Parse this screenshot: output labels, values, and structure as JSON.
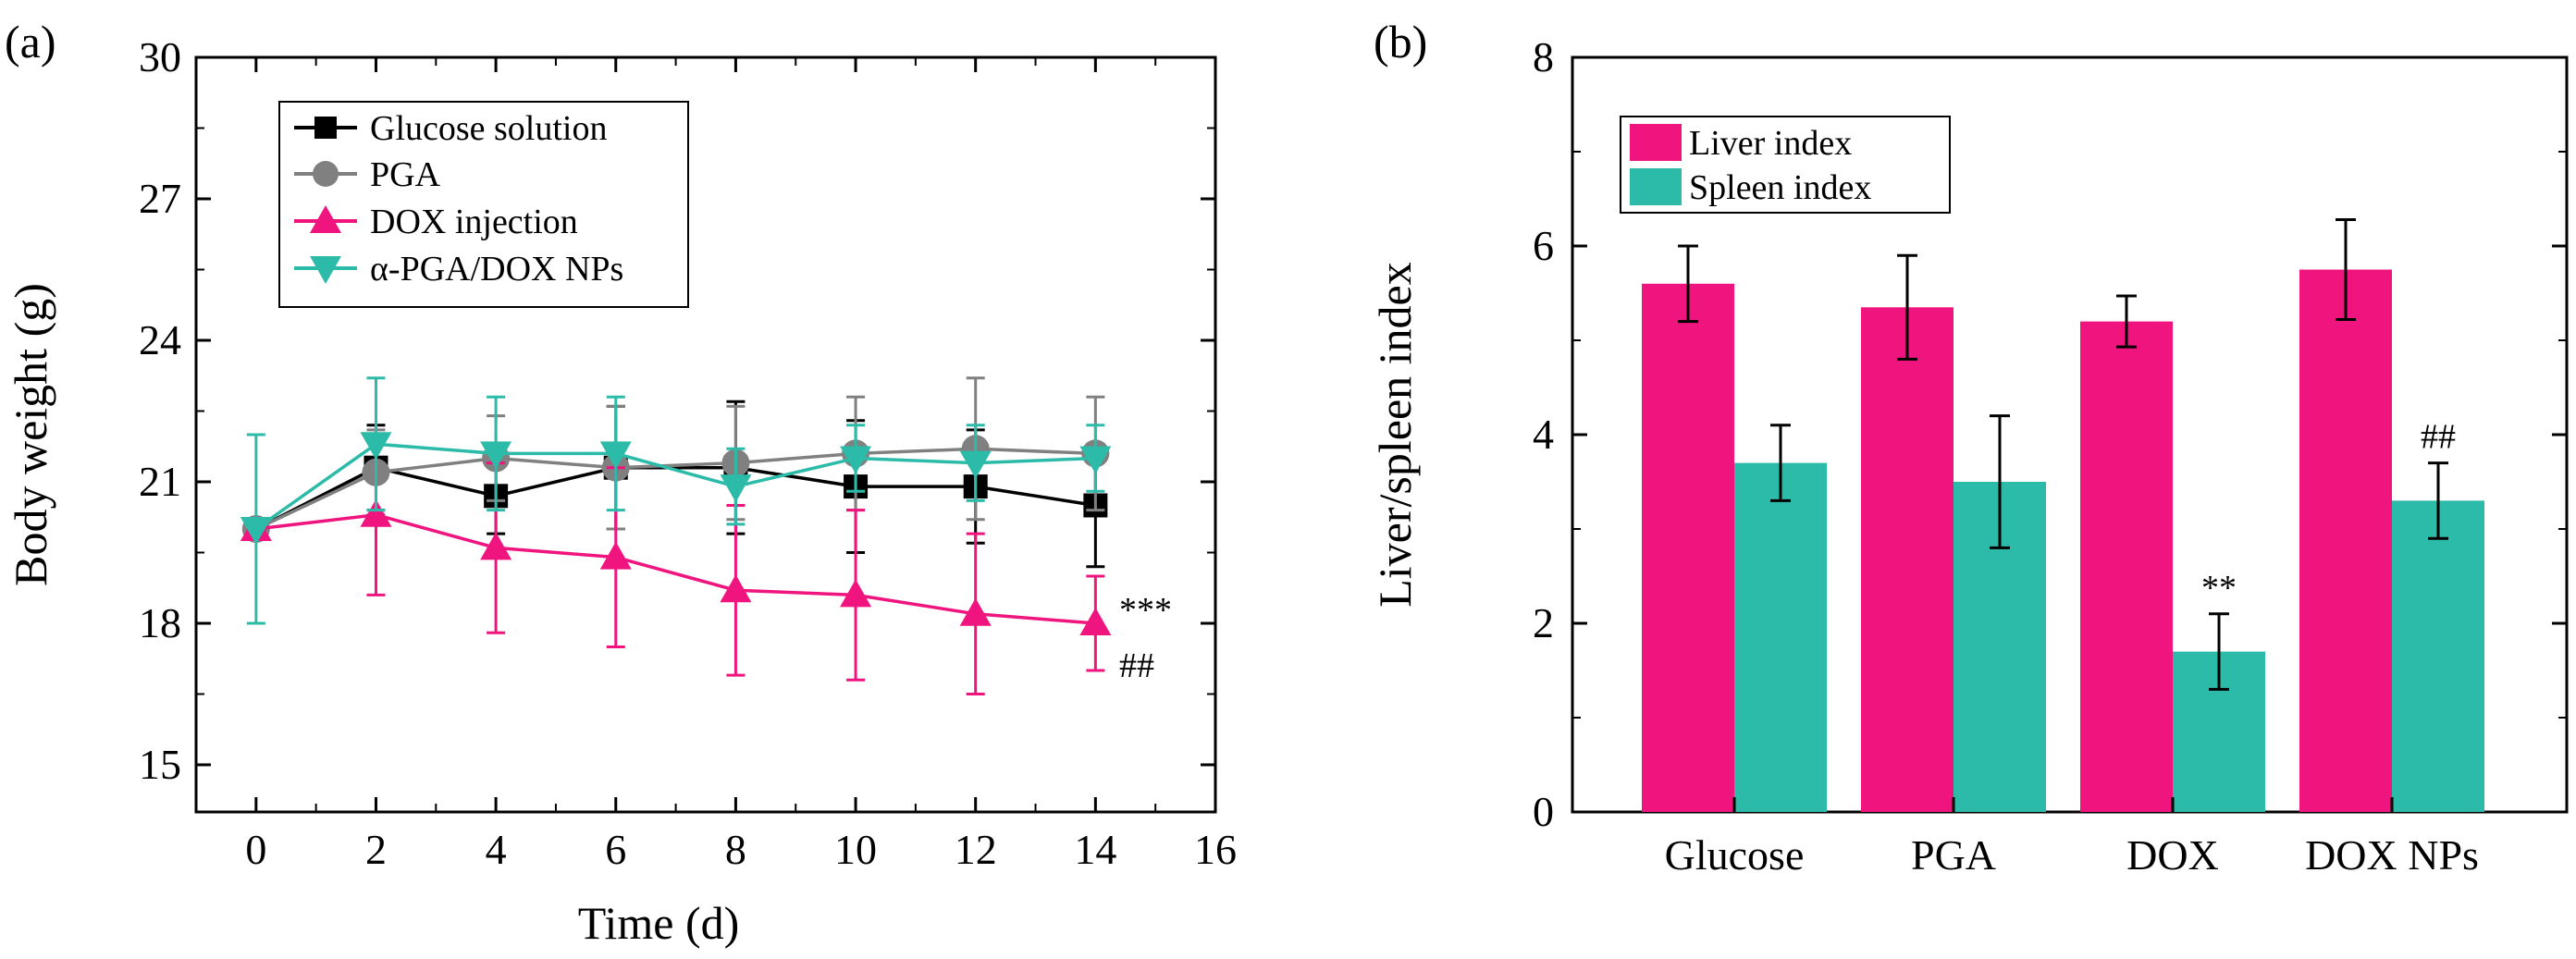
{
  "chart_data": [
    {
      "type": "line",
      "panel_label": "(a)",
      "xlabel": "Time (d)",
      "ylabel": "Body weight (g)",
      "xlim": [
        -1,
        16
      ],
      "ylim": [
        14,
        30
      ],
      "xticks": [
        0,
        2,
        4,
        6,
        8,
        10,
        12,
        14,
        16
      ],
      "yticks": [
        15,
        18,
        21,
        24,
        27,
        30
      ],
      "x": [
        0,
        2,
        4,
        6,
        8,
        10,
        12,
        14
      ],
      "legend_position": "top-left",
      "series": [
        {
          "name": "Glucose solution",
          "color": "#000000",
          "marker": "square",
          "values": [
            20.0,
            21.3,
            20.7,
            21.3,
            21.3,
            20.9,
            20.9,
            20.5
          ],
          "errors": [
            0.0,
            0.9,
            0.8,
            1.3,
            1.4,
            1.4,
            1.2,
            1.3
          ]
        },
        {
          "name": "PGA",
          "color": "#808080",
          "marker": "circle",
          "values": [
            20.0,
            21.2,
            21.5,
            21.3,
            21.4,
            21.6,
            21.7,
            21.6
          ],
          "errors": [
            0.0,
            0.9,
            0.9,
            1.3,
            1.2,
            1.2,
            1.5,
            1.2
          ]
        },
        {
          "name": "DOX injection",
          "color": "#f0147f",
          "marker": "triangle-up",
          "values": [
            20.0,
            20.3,
            19.6,
            19.4,
            18.7,
            18.6,
            18.2,
            18.0
          ],
          "errors": [
            0.0,
            1.7,
            1.8,
            1.9,
            1.8,
            1.8,
            1.7,
            1.0
          ]
        },
        {
          "name": "α-PGA/DOX NPs",
          "color": "#2dbba9",
          "marker": "triangle-down",
          "values": [
            20.0,
            21.8,
            21.6,
            21.6,
            20.9,
            21.5,
            21.4,
            21.5
          ],
          "errors": [
            2.0,
            1.4,
            1.2,
            1.2,
            0.8,
            0.7,
            0.8,
            0.7
          ]
        }
      ],
      "annotations": [
        "***",
        "##"
      ]
    },
    {
      "type": "bar",
      "panel_label": "(b)",
      "xlabel": "",
      "ylabel": "Liver/spleen index",
      "ylim": [
        0,
        8
      ],
      "yticks": [
        0,
        2,
        4,
        6,
        8
      ],
      "categories": [
        "Glucose",
        "PGA",
        "DOX",
        "DOX NPs"
      ],
      "legend_position": "top-left",
      "series": [
        {
          "name": "Liver index",
          "color": "#f0147f",
          "values": [
            5.6,
            5.35,
            5.2,
            5.75
          ],
          "errors": [
            0.4,
            0.55,
            0.27,
            0.53
          ]
        },
        {
          "name": "Spleen index",
          "color": "#2dbba9",
          "values": [
            3.7,
            3.5,
            1.7,
            3.3
          ],
          "errors": [
            0.4,
            0.7,
            0.4,
            0.4
          ]
        }
      ],
      "annotations": [
        {
          "category": "DOX",
          "series": "Spleen index",
          "text": "**"
        },
        {
          "category": "DOX NPs",
          "series": "Spleen index",
          "text": "##"
        }
      ]
    }
  ]
}
